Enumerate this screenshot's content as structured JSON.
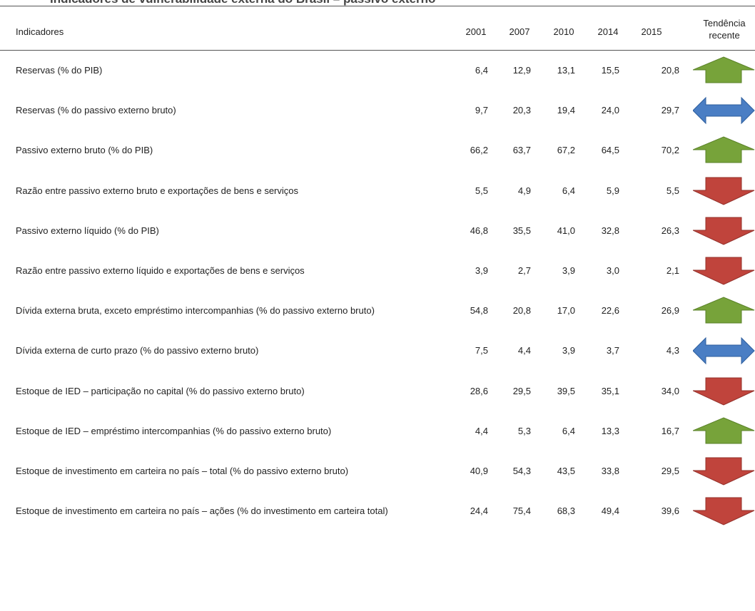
{
  "title": "Indicadores de vulnerabilidade externa do Brasil – passivo externo",
  "table": {
    "header": [
      "Indicadores",
      "2001",
      "2007",
      "2010",
      "2014",
      "2015",
      "Tendência recente"
    ],
    "rows": [
      {
        "cells": [
          "Reservas (% do PIB)",
          "6,4",
          "12,9",
          "13,1",
          "15,5",
          "20,8"
        ],
        "trend": "up"
      },
      {
        "cells": [
          "Reservas (% do passivo externo bruto)",
          "9,7",
          "20,3",
          "19,4",
          "24,0",
          "29,7"
        ],
        "trend": "both"
      },
      {
        "cells": [
          "Passivo externo bruto (% do PIB)",
          "66,2",
          "63,7",
          "67,2",
          "64,5",
          "70,2"
        ],
        "trend": "up"
      },
      {
        "cells": [
          "Razão entre passivo externo bruto e exportações de bens e serviços",
          "5,5",
          "4,9",
          "6,4",
          "5,9",
          "5,5"
        ],
        "trend": "down"
      },
      {
        "cells": [
          "Passivo externo líquido (% do PIB)",
          "46,8",
          "35,5",
          "41,0",
          "32,8",
          "26,3"
        ],
        "trend": "down"
      },
      {
        "cells": [
          "Razão entre passivo externo líquido e exportações de bens e serviços",
          "3,9",
          "2,7",
          "3,9",
          "3,0",
          "2,1"
        ],
        "trend": "down"
      },
      {
        "cells": [
          "Dívida externa bruta, exceto empréstimo intercompanhias (% do passivo externo bruto)",
          "54,8",
          "20,8",
          "17,0",
          "22,6",
          "26,9"
        ],
        "trend": "up"
      },
      {
        "cells": [
          "Dívida externa de curto prazo (% do passivo externo bruto)",
          "7,5",
          "4,4",
          "3,9",
          "3,7",
          "4,3"
        ],
        "trend": "both"
      },
      {
        "cells": [
          "Estoque de IED – participação no capital (% do passivo externo bruto)",
          "28,6",
          "29,5",
          "39,5",
          "35,1",
          "34,0"
        ],
        "trend": "down"
      },
      {
        "cells": [
          "Estoque de IED – empréstimo intercompanhias (% do passivo externo bruto)",
          "4,4",
          "5,3",
          "6,4",
          "13,3",
          "16,7"
        ],
        "trend": "up"
      },
      {
        "cells": [
          "Estoque de investimento em carteira no país – total (% do passivo externo bruto)",
          "40,9",
          "54,3",
          "43,5",
          "33,8",
          "29,5"
        ],
        "trend": "down"
      },
      {
        "cells": [
          "Estoque de investimento em carteira no país – ações (% do investimento em carteira total)",
          "24,4",
          "75,4",
          "68,3",
          "49,4",
          "39,6"
        ],
        "trend": "down"
      }
    ]
  }
}
